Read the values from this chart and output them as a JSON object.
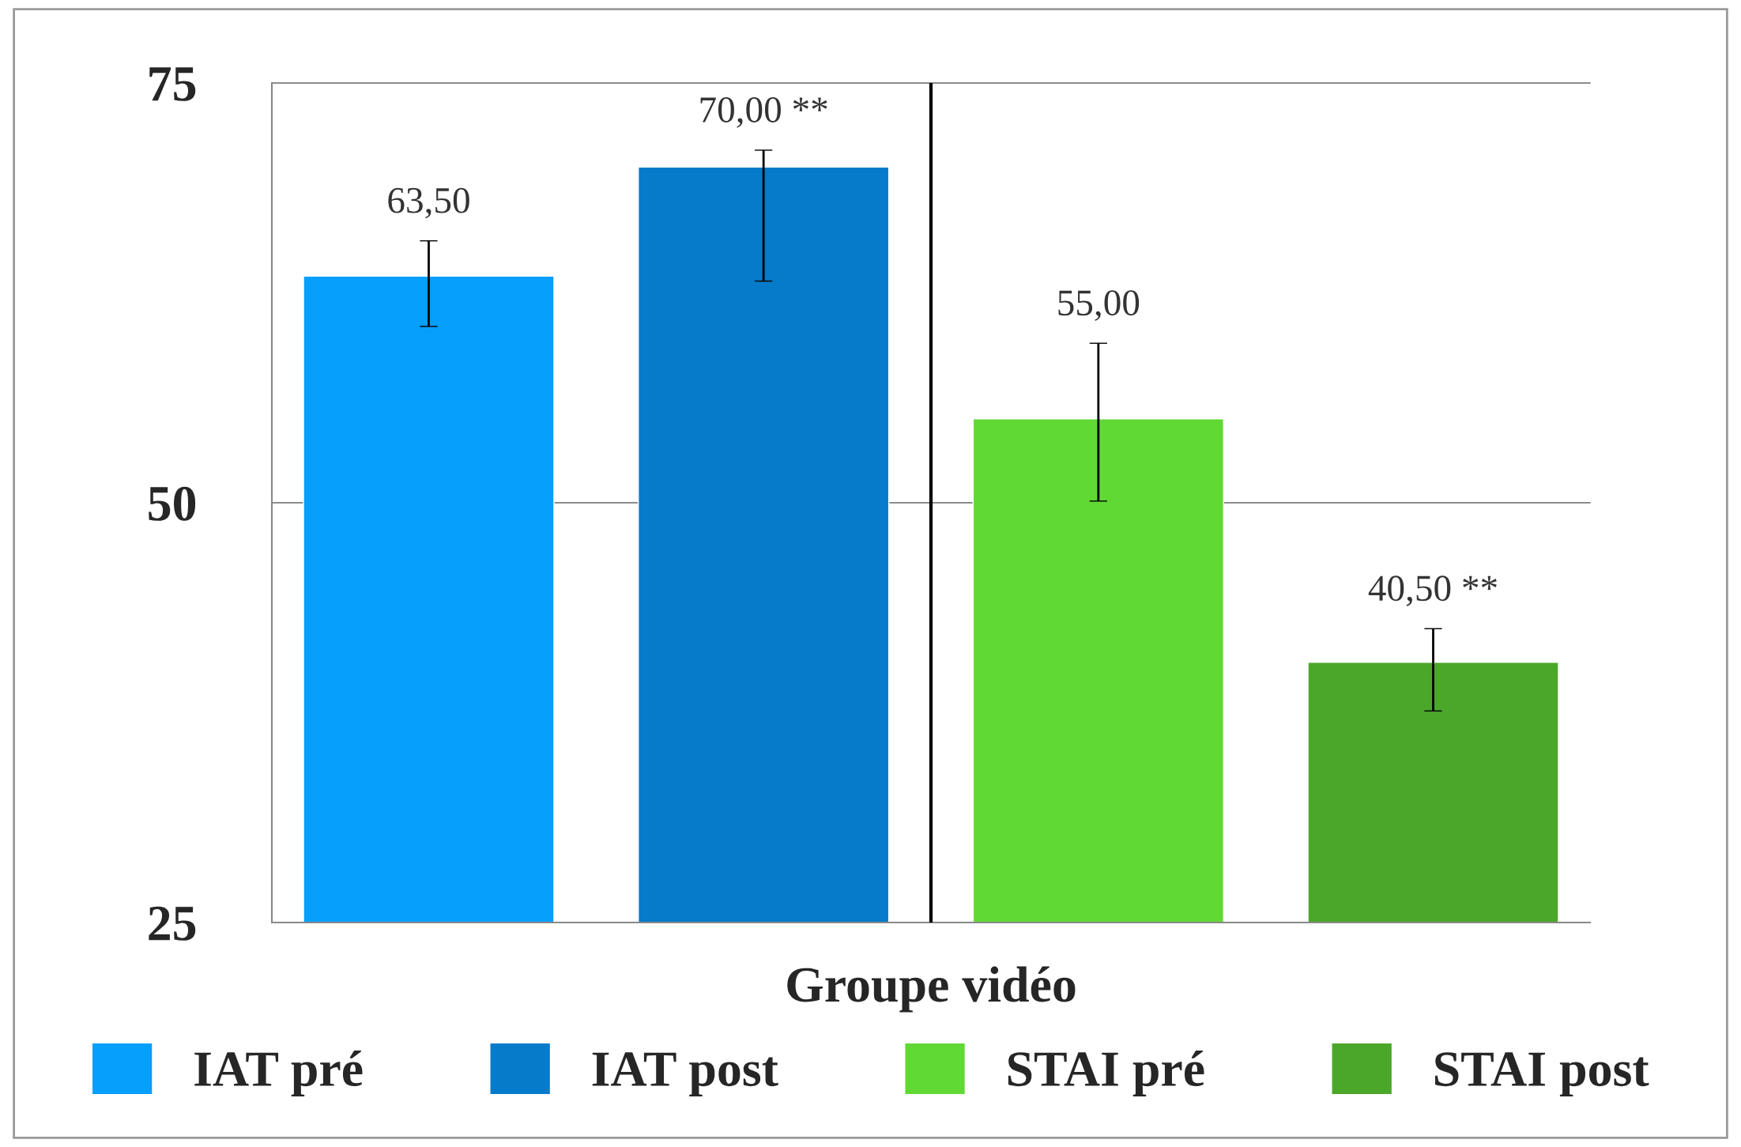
{
  "chart_data": {
    "type": "bar",
    "categories": [
      "Groupe vidéo"
    ],
    "series": [
      {
        "name": "IAT pré",
        "color": "#069ffc",
        "values": [
          63.5
        ],
        "value_labels": [
          "63,50"
        ],
        "errors": [
          [
            60.5,
            65.6
          ]
        ]
      },
      {
        "name": "IAT post",
        "color": "#057bc9",
        "values": [
          70.0
        ],
        "value_labels": [
          "70,00 **"
        ],
        "errors": [
          [
            63.2,
            71.0
          ]
        ]
      },
      {
        "name": "STAI pré",
        "color": "#61d935",
        "values": [
          55.0
        ],
        "value_labels": [
          "55,00"
        ],
        "errors": [
          [
            50.1,
            59.5
          ]
        ]
      },
      {
        "name": "STAI post",
        "color": "#4ba72a",
        "values": [
          40.5
        ],
        "value_labels": [
          "40,50 **"
        ],
        "errors": [
          [
            37.6,
            42.5
          ]
        ]
      }
    ],
    "ylim": [
      25,
      75
    ],
    "yticks": [
      25,
      50,
      75
    ],
    "legend": "bottom",
    "ref_lines": [
      {
        "axis": "x",
        "value": "Groupe vidéo",
        "color": "#000000"
      },
      {
        "axis": "y",
        "value": 50,
        "color": "#8c8c8c"
      },
      {
        "axis": "y",
        "value": 75,
        "color": "#8c8c8c"
      }
    ]
  }
}
